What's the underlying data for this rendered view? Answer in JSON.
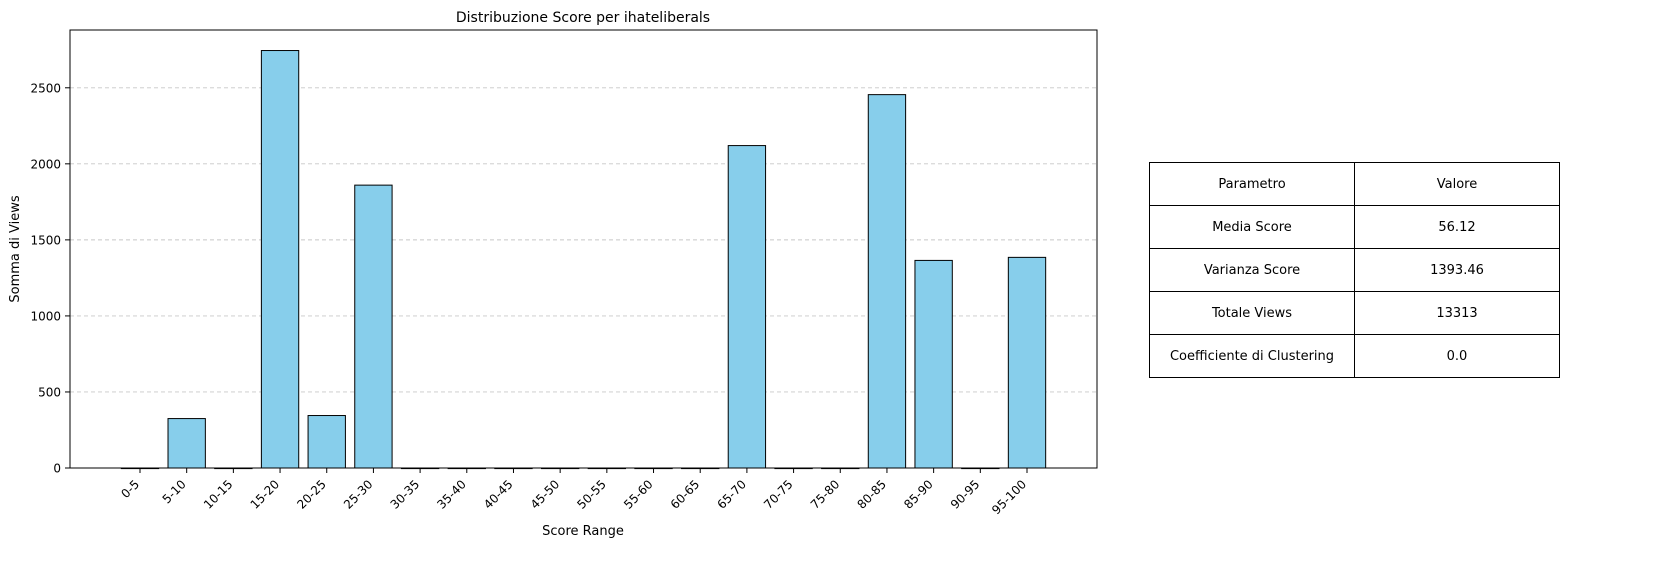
{
  "chart_data": {
    "type": "bar",
    "title": "Distribuzione Score per ihateliberals",
    "xlabel": "Score Range",
    "ylabel": "Somma di Views",
    "categories": [
      "0-5",
      "5-10",
      "10-15",
      "15-20",
      "20-25",
      "25-30",
      "30-35",
      "35-40",
      "40-45",
      "45-50",
      "50-55",
      "55-60",
      "60-65",
      "65-70",
      "70-75",
      "75-80",
      "80-85",
      "85-90",
      "90-95",
      "95-100"
    ],
    "values": [
      0,
      325,
      0,
      2745,
      345,
      1860,
      0,
      0,
      0,
      0,
      0,
      0,
      0,
      2120,
      0,
      0,
      2455,
      1365,
      0,
      1385
    ],
    "ylim": [
      0,
      2880
    ],
    "yticks": [
      0,
      500,
      1000,
      1500,
      2000,
      2500
    ],
    "grid": "y-dashed",
    "bar_color": "#87CEEB",
    "edge_color": "#000000"
  },
  "table": {
    "header": [
      "Parametro",
      "Valore"
    ],
    "rows": [
      [
        "Media Score",
        "56.12"
      ],
      [
        "Varianza Score",
        "1393.46"
      ],
      [
        "Totale Views",
        "13313"
      ],
      [
        "Coefficiente di Clustering",
        "0.0"
      ]
    ]
  }
}
